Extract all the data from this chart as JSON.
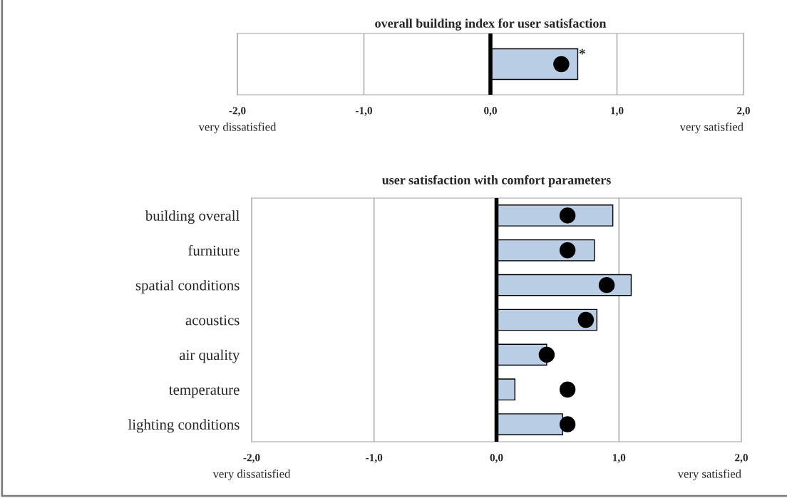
{
  "chart_data": [
    {
      "type": "bar",
      "orientation": "horizontal",
      "title": "overall building index for user satisfaction",
      "categories": [
        null
      ],
      "series": [
        {
          "type": "bar",
          "color": "#b9cde5",
          "values": [
            0.69
          ]
        },
        {
          "type": "scatter",
          "color": "#000000",
          "values": [
            0.56
          ]
        }
      ],
      "xlim": [
        -2,
        2
      ],
      "xticks": [
        {
          "value": -2,
          "label": "-2,0"
        },
        {
          "value": -1,
          "label": "-1,0"
        },
        {
          "value": 0,
          "label": "0,0"
        },
        {
          "value": 1,
          "label": "1,0"
        },
        {
          "value": 2,
          "label": "2,0"
        }
      ],
      "grid": "x",
      "marker": "circle",
      "tick_labels": "x",
      "ref_lines": [
        {
          "axis": "x",
          "value": 0,
          "color": "#000000"
        }
      ],
      "annotations": [
        "very dissatisfied",
        "very satisfied",
        {
          "text": "*",
          "x": 0.69
        }
      ]
    },
    {
      "type": "bar",
      "orientation": "horizontal",
      "title": "user satisfaction with comfort parameters",
      "categories": [
        "building overall",
        "furniture",
        "spatial conditions",
        "acoustics",
        "air quality",
        "temperature",
        "lighting conditions"
      ],
      "series": [
        {
          "type": "bar",
          "color": "#b9cde5",
          "values": [
            0.95,
            0.8,
            1.1,
            0.82,
            0.41,
            0.15,
            0.54
          ]
        },
        {
          "type": "scatter",
          "color": "#000000",
          "values": [
            0.58,
            0.58,
            0.9,
            0.73,
            0.41,
            0.58,
            0.58
          ]
        }
      ],
      "xlim": [
        -2,
        2
      ],
      "xticks": [
        {
          "value": -2,
          "label": "-2,0"
        },
        {
          "value": -1,
          "label": "-1,0"
        },
        {
          "value": 0,
          "label": "0,0"
        },
        {
          "value": 1,
          "label": "1,0"
        },
        {
          "value": 2,
          "label": "2,0"
        }
      ],
      "grid": "x",
      "marker": "circle",
      "ref_lines": [
        {
          "axis": "x",
          "value": 0,
          "color": "#000000"
        }
      ],
      "annotations": [
        "very dissatisfied",
        "very satisfied"
      ]
    }
  ]
}
